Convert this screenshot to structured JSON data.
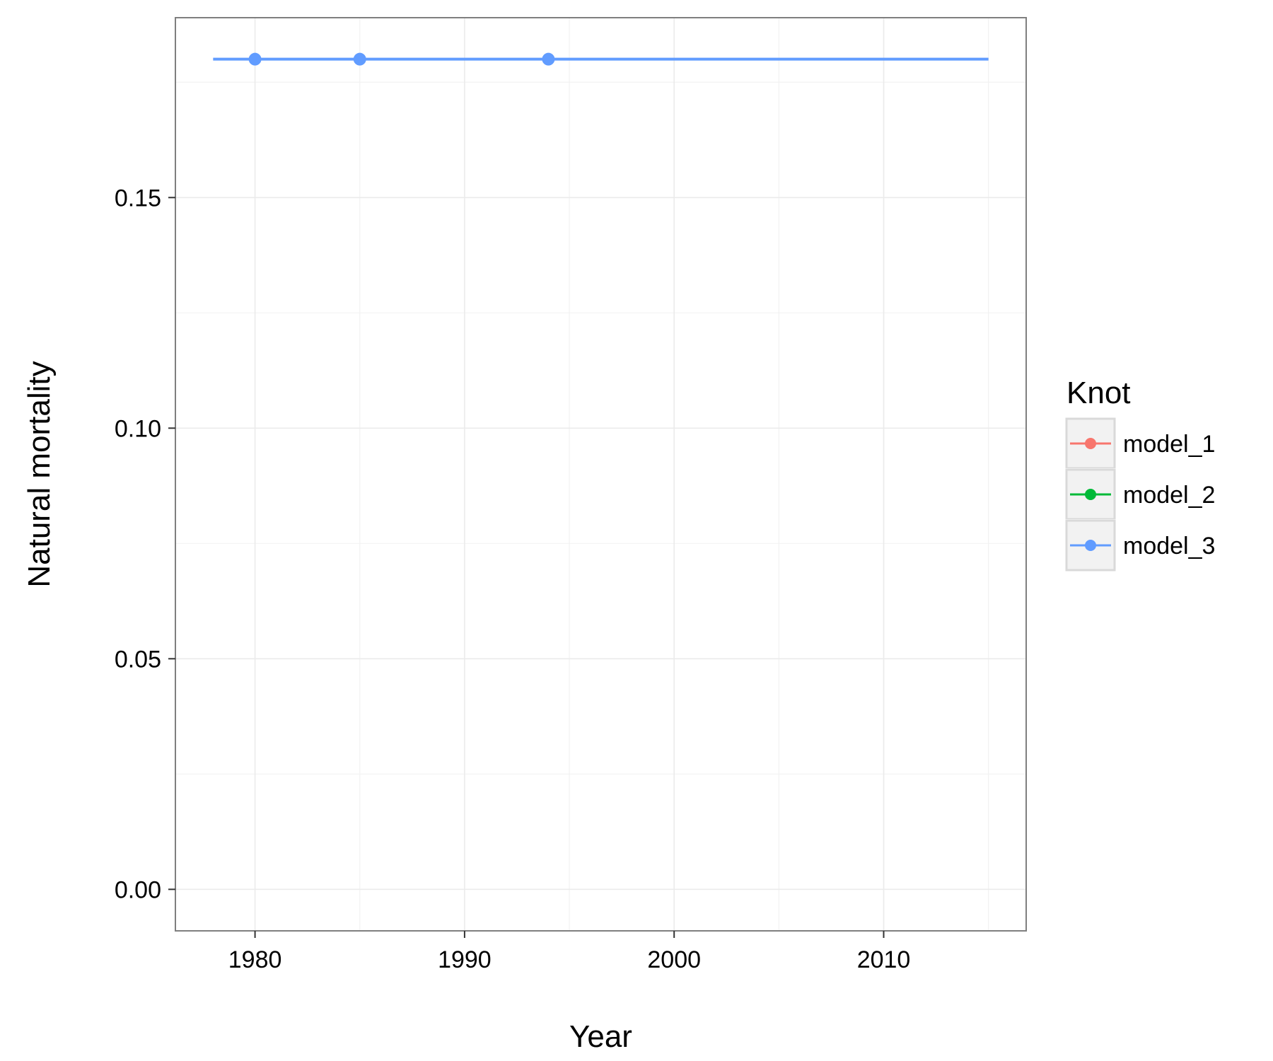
{
  "chart_data": {
    "type": "line",
    "xlabel": "Year",
    "ylabel": "Natural mortality",
    "xlim": [
      1976.2,
      2016.8
    ],
    "ylim": [
      -0.009,
      0.189
    ],
    "x_ticks": [
      1980,
      1990,
      2000,
      2010
    ],
    "x_tick_labels": [
      "1980",
      "1990",
      "2000",
      "2010"
    ],
    "x_minor_ticks": [
      1985,
      1995,
      2005,
      2015
    ],
    "y_ticks": [
      0.0,
      0.05,
      0.1,
      0.15
    ],
    "y_tick_labels": [
      "0.00",
      "0.05",
      "0.10",
      "0.15"
    ],
    "y_minor_ticks": [
      0.025,
      0.075,
      0.125,
      0.175
    ],
    "grid": true,
    "legend": {
      "title": "Knot",
      "position": "right",
      "entries": [
        "model_1",
        "model_2",
        "model_3"
      ]
    },
    "series": [
      {
        "name": "model_1",
        "color": "#F8766D",
        "line": {
          "x": [],
          "y": []
        },
        "points": {
          "x": [],
          "y": []
        }
      },
      {
        "name": "model_2",
        "color": "#00BA38",
        "line": {
          "x": [],
          "y": []
        },
        "points": {
          "x": [],
          "y": []
        }
      },
      {
        "name": "model_3",
        "color": "#619CFF",
        "line": {
          "x": [
            1978,
            2015
          ],
          "y": [
            0.18,
            0.18
          ]
        },
        "points": {
          "x": [
            1980,
            1985,
            1994
          ],
          "y": [
            0.18,
            0.18,
            0.18
          ]
        }
      }
    ]
  }
}
